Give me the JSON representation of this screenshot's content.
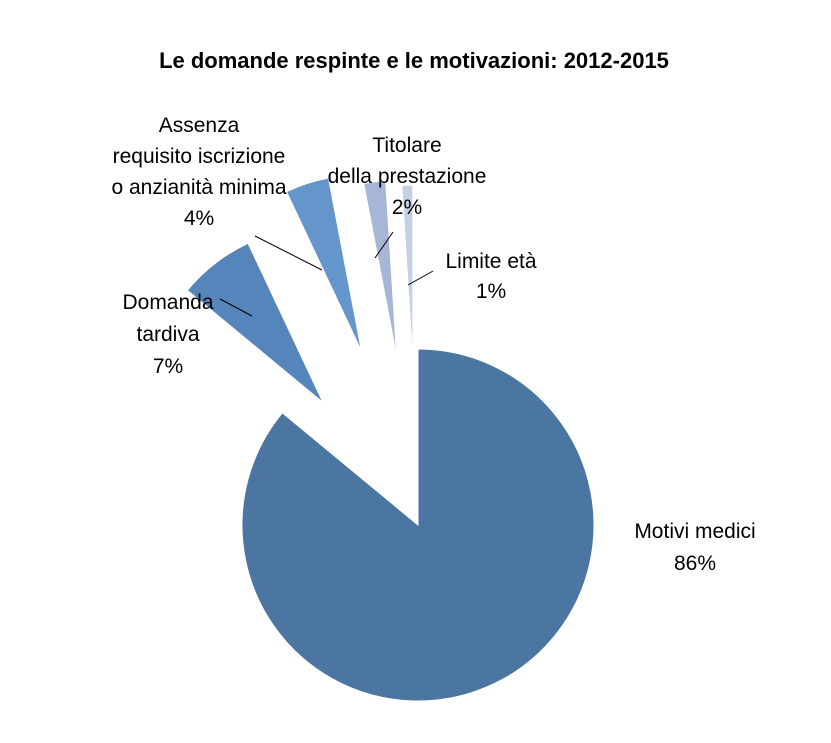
{
  "chart_data": {
    "type": "pie",
    "title": "Le domande respinte e le motivazioni: 2012-2015",
    "start_angle_deg": 0,
    "direction": "clockwise",
    "exploded": true,
    "slices": [
      {
        "id": "motivi-medici",
        "label_lines": [
          "Motivi medici"
        ],
        "pct_label": "86%",
        "value": 86,
        "color": "#4a76a1",
        "explode": false
      },
      {
        "id": "domanda-tardiva",
        "label_lines": [
          "Domanda",
          "tardiva"
        ],
        "pct_label": "7%",
        "value": 7,
        "color": "#5585bb",
        "explode": true
      },
      {
        "id": "assenza-requisito",
        "label_lines": [
          "Assenza",
          "requisito iscrizione",
          "o anzianità minima"
        ],
        "pct_label": "4%",
        "value": 4,
        "color": "#6495cb",
        "explode": true
      },
      {
        "id": "titolare-prestazione",
        "label_lines": [
          "Titolare",
          "della prestazione"
        ],
        "pct_label": "2%",
        "value": 2,
        "color": "#a7b5d6",
        "explode": true
      },
      {
        "id": "limite-eta",
        "label_lines": [
          "Limite età"
        ],
        "pct_label": "1%",
        "value": 1,
        "color": "#c5d0e5",
        "explode": true
      }
    ]
  }
}
